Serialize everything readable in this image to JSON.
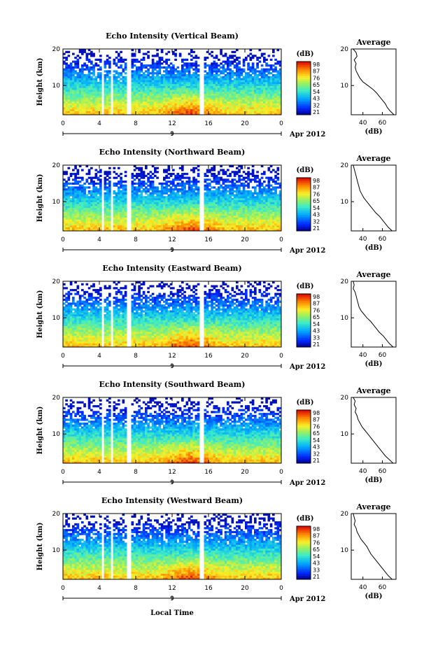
{
  "figure": {
    "xaxis_label": "Local Time",
    "date_label": "Apr 2012",
    "day_label": "9"
  },
  "chart_data": [
    {
      "type": "heatmap",
      "title": "Echo Intensity (Vertical Beam)",
      "xlabel": "",
      "ylabel": "Height (km)",
      "xlim": [
        0,
        24
      ],
      "ylim": [
        2,
        20
      ],
      "xticks": [
        "0",
        "4",
        "8",
        "12",
        "16",
        "20",
        "0"
      ],
      "yticks": [
        "20",
        "10"
      ],
      "colorbar": {
        "unit": "(dB)",
        "labels": [
          "98",
          "87",
          "76",
          "65",
          "54",
          "43",
          "32",
          "21"
        ]
      },
      "profile": {
        "title": "Average",
        "xlabel": "(dB)",
        "xticks": [
          "40",
          "60"
        ],
        "yticks": [
          "20",
          "10"
        ],
        "height_km": [
          20,
          19,
          18,
          17,
          16,
          15,
          14,
          13,
          12,
          11,
          10,
          9,
          8,
          7,
          6,
          5,
          4,
          3,
          2
        ],
        "avg_db": [
          30,
          33,
          34,
          31,
          33,
          32,
          33,
          35,
          37,
          40,
          45,
          50,
          54,
          57,
          60,
          63,
          65,
          68,
          72
        ]
      }
    },
    {
      "type": "heatmap",
      "title": "Echo Intensity (Northward Beam)",
      "xlabel": "",
      "ylabel": "Height (km)",
      "xlim": [
        0,
        24
      ],
      "ylim": [
        2,
        20
      ],
      "xticks": [
        "0",
        "4",
        "8",
        "12",
        "16",
        "20",
        "0"
      ],
      "yticks": [
        "20",
        "10"
      ],
      "colorbar": {
        "unit": "(dB)",
        "labels": [
          "98",
          "87",
          "76",
          "65",
          "54",
          "43",
          "32",
          "21"
        ]
      },
      "profile": {
        "title": "Average",
        "xlabel": "(dB)",
        "xticks": [
          "40",
          "60"
        ],
        "yticks": [
          "20",
          "10"
        ],
        "height_km": [
          20,
          19,
          18,
          17,
          16,
          15,
          14,
          13,
          12,
          11,
          10,
          9,
          8,
          7,
          6,
          5,
          4,
          3,
          2
        ],
        "avg_db": [
          30,
          31,
          32,
          33,
          34,
          35,
          36,
          37,
          39,
          41,
          44,
          47,
          50,
          53,
          57,
          60,
          63,
          66,
          70
        ]
      }
    },
    {
      "type": "heatmap",
      "title": "Echo Intensity (Eastward Beam)",
      "xlabel": "",
      "ylabel": "Height (km)",
      "xlim": [
        0,
        24
      ],
      "ylim": [
        2,
        20
      ],
      "xticks": [
        "0",
        "4",
        "8",
        "12",
        "16",
        "20",
        "0"
      ],
      "yticks": [
        "20",
        "10"
      ],
      "colorbar": {
        "unit": "(dB)",
        "labels": [
          "98",
          "87",
          "76",
          "65",
          "54",
          "43",
          "33",
          "21"
        ]
      },
      "profile": {
        "title": "Average",
        "xlabel": "(dB)",
        "xticks": [
          "40",
          "60"
        ],
        "yticks": [
          "20",
          "10"
        ],
        "height_km": [
          20,
          19,
          18,
          17,
          16,
          15,
          14,
          13,
          12,
          11,
          10,
          9,
          8,
          7,
          6,
          5,
          4,
          3,
          2
        ],
        "avg_db": [
          30,
          31,
          30,
          32,
          33,
          34,
          35,
          36,
          38,
          41,
          44,
          48,
          51,
          54,
          57,
          61,
          64,
          67,
          71
        ]
      }
    },
    {
      "type": "heatmap",
      "title": "Echo Intensity (Southward Beam)",
      "xlabel": "",
      "ylabel": "Height (km)",
      "xlim": [
        0,
        24
      ],
      "ylim": [
        2,
        20
      ],
      "xticks": [
        "0",
        "4",
        "8",
        "12",
        "16",
        "20",
        "0"
      ],
      "yticks": [
        "20",
        "10"
      ],
      "colorbar": {
        "unit": "(dB)",
        "labels": [
          "98",
          "87",
          "76",
          "65",
          "54",
          "43",
          "32",
          "21"
        ]
      },
      "profile": {
        "title": "Average",
        "xlabel": "(dB)",
        "xticks": [
          "40",
          "60"
        ],
        "yticks": [
          "20",
          "10"
        ],
        "height_km": [
          20,
          19,
          18,
          17,
          16,
          15,
          14,
          13,
          12,
          11,
          10,
          9,
          8,
          7,
          6,
          5,
          4,
          3,
          2
        ],
        "avg_db": [
          30,
          32,
          31,
          33,
          32,
          34,
          35,
          37,
          39,
          42,
          45,
          48,
          51,
          54,
          57,
          60,
          63,
          67,
          71
        ]
      }
    },
    {
      "type": "heatmap",
      "title": "Echo Intensity (Westward Beam)",
      "xlabel": "Local Time",
      "ylabel": "Height (km)",
      "xlim": [
        0,
        24
      ],
      "ylim": [
        2,
        20
      ],
      "xticks": [
        "0",
        "4",
        "8",
        "12",
        "16",
        "20",
        "0"
      ],
      "yticks": [
        "20",
        "10"
      ],
      "colorbar": {
        "unit": "(dB)",
        "labels": [
          "98",
          "87",
          "76",
          "65",
          "54",
          "43",
          "33",
          "21"
        ]
      },
      "profile": {
        "title": "Average",
        "xlabel": "(dB)",
        "xticks": [
          "40",
          "60"
        ],
        "yticks": [
          "20",
          "10"
        ],
        "height_km": [
          20,
          19,
          18,
          17,
          16,
          15,
          14,
          13,
          12,
          11,
          10,
          9,
          8,
          7,
          6,
          5,
          4,
          3,
          2
        ],
        "avg_db": [
          30,
          31,
          32,
          31,
          33,
          34,
          36,
          38,
          41,
          44,
          46,
          48,
          51,
          54,
          57,
          60,
          63,
          66,
          70
        ]
      }
    }
  ]
}
